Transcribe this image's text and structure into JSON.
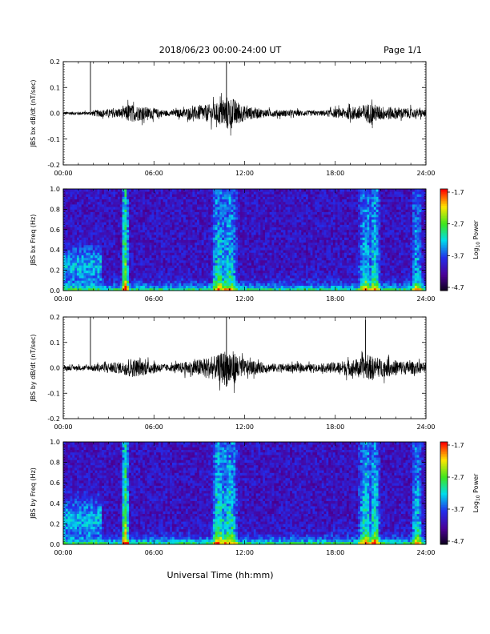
{
  "header": {
    "date_range": "2018/06/23  00:00-24:00 UT",
    "page": "Page 1/1"
  },
  "xlabel": "Universal Time (hh:mm)",
  "x_ticks": [
    "00:00",
    "06:00",
    "12:00",
    "18:00",
    "24:00"
  ],
  "colorbar": {
    "ticks": [
      "-1.7",
      "-2.7",
      "-3.7",
      "-4.7"
    ],
    "label_prefix": "Log",
    "label_sub": "10",
    "label_suffix": " Power",
    "range": [
      -4.7,
      -1.7
    ]
  },
  "chart_data": [
    {
      "type": "line",
      "ylabel": "JBS bx dB/dt (nT/sec)",
      "xlim": [
        0,
        24
      ],
      "ylim": [
        -0.2,
        0.2
      ],
      "y_ticks": [
        "0.2",
        "0.1",
        "0.0",
        "-0.1",
        "-0.2"
      ],
      "x": [
        0,
        1.8,
        2.0,
        4.0,
        4.3,
        7.0,
        10.2,
        10.9,
        11.3,
        12.0,
        13.5,
        17.0,
        19.5,
        20.3,
        21.0,
        24.0
      ],
      "envelope": [
        0.008,
        0.008,
        0.015,
        0.025,
        0.045,
        0.012,
        0.05,
        0.085,
        0.07,
        0.035,
        0.018,
        0.012,
        0.035,
        0.05,
        0.035,
        0.018
      ],
      "spikes": [
        {
          "x": 1.8,
          "y": 0.205
        },
        {
          "x": 10.8,
          "y": 0.205
        }
      ]
    },
    {
      "type": "heatmap",
      "ylabel": "JBS bx Freq (Hz)",
      "xlim": [
        0,
        24
      ],
      "ylim": [
        0,
        1.0
      ],
      "y_ticks": [
        "1.0",
        "0.8",
        "0.6",
        "0.4",
        "0.2",
        "0.0"
      ],
      "value_range": [
        -4.7,
        -1.7
      ],
      "features": [
        {
          "x": 4.1,
          "width": 0.25,
          "strength": 0.65
        },
        {
          "x": 10.3,
          "width": 0.5,
          "strength": 0.45
        },
        {
          "x": 11.0,
          "width": 0.6,
          "strength": 0.4
        },
        {
          "x": 20.0,
          "width": 0.5,
          "strength": 0.4
        },
        {
          "x": 20.6,
          "width": 0.4,
          "strength": 0.45
        },
        {
          "x": 23.4,
          "width": 0.4,
          "strength": 0.35
        }
      ]
    },
    {
      "type": "line",
      "ylabel": "JBS by dB/dt (nT/sec)",
      "xlim": [
        0,
        24
      ],
      "ylim": [
        -0.2,
        0.2
      ],
      "y_ticks": [
        "0.2",
        "0.1",
        "0.0",
        "-0.1",
        "-0.2"
      ],
      "x": [
        0,
        1.8,
        2.0,
        4.0,
        4.3,
        7.0,
        10.2,
        10.9,
        11.3,
        12.0,
        13.5,
        17.0,
        19.5,
        20.3,
        21.0,
        24.0
      ],
      "envelope": [
        0.012,
        0.012,
        0.018,
        0.03,
        0.05,
        0.015,
        0.06,
        0.1,
        0.08,
        0.04,
        0.022,
        0.018,
        0.045,
        0.06,
        0.045,
        0.025
      ],
      "spikes": [
        {
          "x": 1.8,
          "y": 0.205
        },
        {
          "x": 10.8,
          "y": 0.205
        },
        {
          "x": 20.0,
          "y": 0.19
        }
      ]
    },
    {
      "type": "heatmap",
      "ylabel": "JBS by Freq (Hz)",
      "xlim": [
        0,
        24
      ],
      "ylim": [
        0,
        1.0
      ],
      "y_ticks": [
        "1.0",
        "0.8",
        "0.6",
        "0.4",
        "0.2",
        "0.0"
      ],
      "value_range": [
        -4.7,
        -1.7
      ],
      "features": [
        {
          "x": 4.1,
          "width": 0.25,
          "strength": 0.7
        },
        {
          "x": 10.3,
          "width": 0.5,
          "strength": 0.5
        },
        {
          "x": 11.0,
          "width": 0.6,
          "strength": 0.45
        },
        {
          "x": 20.0,
          "width": 0.5,
          "strength": 0.45
        },
        {
          "x": 20.6,
          "width": 0.4,
          "strength": 0.5
        },
        {
          "x": 23.4,
          "width": 0.4,
          "strength": 0.4
        }
      ]
    }
  ]
}
